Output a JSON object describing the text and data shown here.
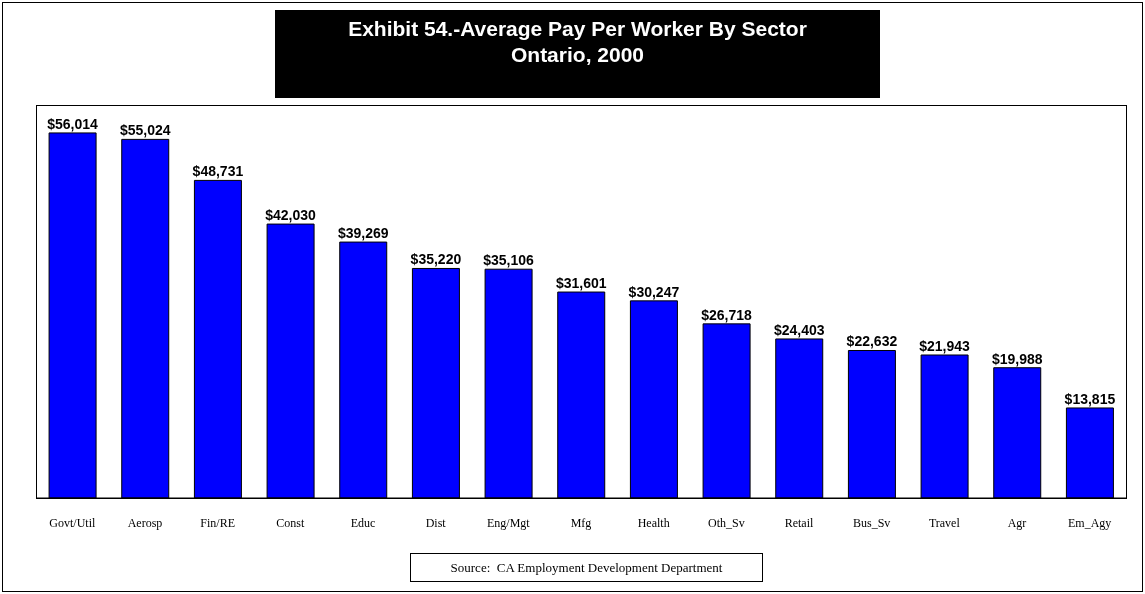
{
  "chart_data": {
    "type": "bar",
    "title": "Exhibit 54.-Average Pay Per Worker By Sector\nOntario, 2000",
    "categories": [
      "Govt/Util",
      "Aerosp",
      "Fin/RE",
      "Const",
      "Educ",
      "Dist",
      "Eng/Mgt",
      "Mfg",
      "Health",
      "Oth_Sv",
      "Retail",
      "Bus_Sv",
      "Travel",
      "Agr",
      "Em_Agy"
    ],
    "values": [
      56014,
      55024,
      48731,
      42030,
      39269,
      35220,
      35106,
      31601,
      30247,
      26718,
      24403,
      22632,
      21943,
      19988,
      13815
    ],
    "value_labels": [
      "$56,014",
      "$55,024",
      "$48,731",
      "$42,030",
      "$39,269",
      "$35,220",
      "$35,106",
      "$31,601",
      "$30,247",
      "$26,718",
      "$24,403",
      "$22,632",
      "$21,943",
      "$19,988",
      "$13,815"
    ],
    "color": "#0000ff",
    "ylim": [
      0,
      60300
    ],
    "grid": false,
    "legend": false,
    "annotations": [
      "Source:  CA Employment Development Department"
    ]
  }
}
